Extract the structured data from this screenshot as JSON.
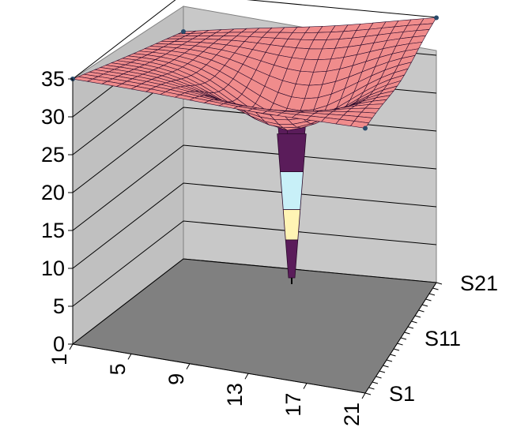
{
  "chart_data": {
    "type": "surface",
    "title": "",
    "xlabel": "",
    "ylabel": "",
    "zlim": [
      0,
      35
    ],
    "z_ticks": [
      "0",
      "5",
      "10",
      "15",
      "20",
      "25",
      "30",
      "35"
    ],
    "x_ticks": [
      "1",
      "5",
      "9",
      "13",
      "17",
      "21"
    ],
    "series_ticks": [
      "S1",
      "S11",
      "S21"
    ],
    "x_count": 21,
    "series_count": 21,
    "corner_values": {
      "x1_s1": 35,
      "x21_s1": 35,
      "x1_s21": 30,
      "x21_s21": 35
    },
    "center_minimum": {
      "x": 13,
      "series": 11,
      "value": 6
    },
    "grid": true,
    "legend": "none",
    "colors": {
      "wall": "#c0c0c0",
      "floor": "#808080",
      "surface_band_high": "#f08c8c",
      "surface_band_mid": "#5a1c5a",
      "surface_band_low": "#c8f0f8",
      "surface_band_lower": "#fff4b4"
    }
  }
}
